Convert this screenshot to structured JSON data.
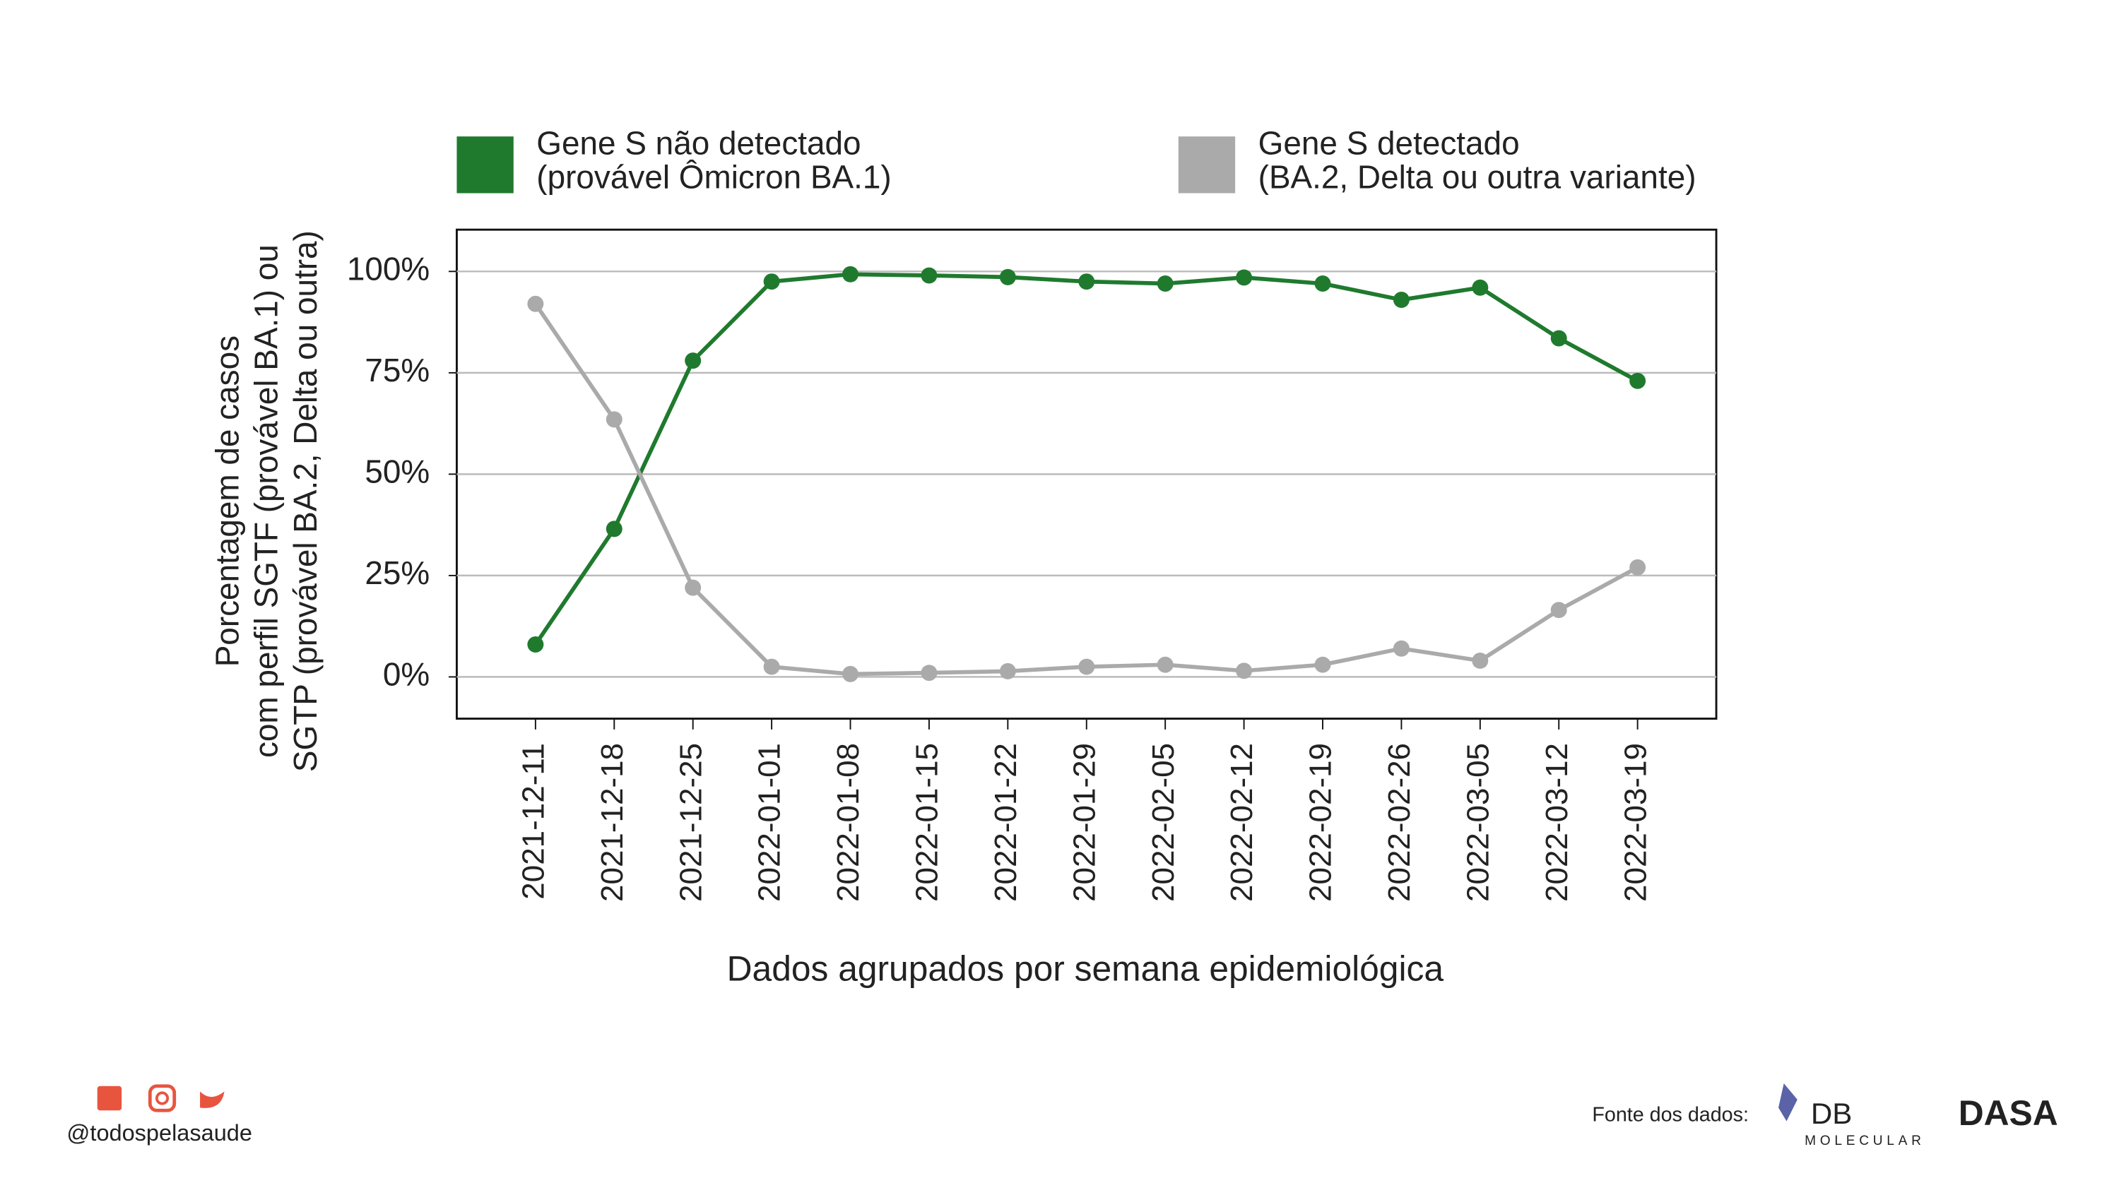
{
  "chart_data": {
    "type": "line",
    "y_label": [
      "Porcentagem de casos",
      "com perfil SGTF (provável BA.1) ou",
      "SGTP (provável BA.2, Delta ou outra)"
    ],
    "x_label": "Dados agrupados por semana epidemiológica",
    "categories": [
      "2021-12-11",
      "2021-12-18",
      "2021-12-25",
      "2022-01-01",
      "2022-01-08",
      "2022-01-15",
      "2022-01-22",
      "2022-01-29",
      "2022-02-05",
      "2022-02-12",
      "2022-02-19",
      "2022-02-26",
      "2022-03-05",
      "2022-03-12",
      "2022-03-19"
    ],
    "series": [
      {
        "name": [
          "Gene S não detectado",
          "(provável Ômicron BA.1)"
        ],
        "color": "#1f7a2e",
        "values": [
          8,
          36.5,
          78,
          97.5,
          99.3,
          99,
          98.6,
          97.5,
          97,
          98.5,
          97,
          93,
          96,
          83.5,
          73
        ]
      },
      {
        "name": [
          "Gene S detectado",
          "(BA.2, Delta ou outra variante)"
        ],
        "color": "#aaaaaa",
        "values": [
          92,
          63.5,
          22,
          2.5,
          0.7,
          1,
          1.4,
          2.5,
          3,
          1.5,
          3,
          7,
          4,
          16.5,
          27
        ]
      }
    ],
    "ylim": [
      -10.3,
      110.3
    ],
    "yticks": [
      {
        "value": 0,
        "label": "0%"
      },
      {
        "value": 25,
        "label": "25%"
      },
      {
        "value": 50,
        "label": "50%"
      },
      {
        "value": 75,
        "label": "75%"
      },
      {
        "value": 100,
        "label": "100%"
      }
    ],
    "grid": true
  },
  "footer": {
    "handle": "@todospelasaude",
    "source_label": "Fonte dos dados:",
    "logo_db": "DB",
    "logo_molecular": "MOLECULAR",
    "logo_dasa": "DASA"
  }
}
